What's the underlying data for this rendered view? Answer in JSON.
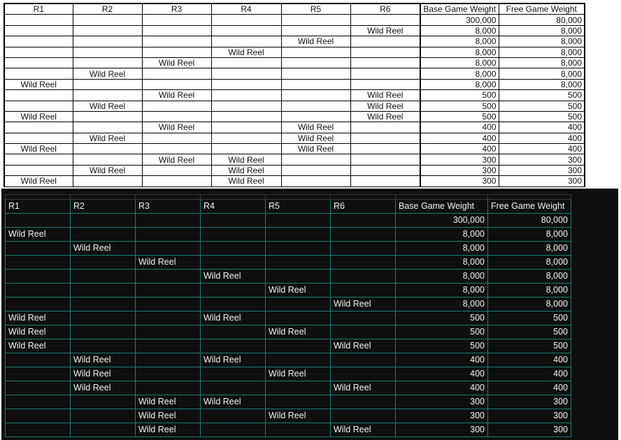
{
  "columns": [
    "R1",
    "R2",
    "R3",
    "R4",
    "R5",
    "R6",
    "Base Game Weight",
    "Free Game Weight"
  ],
  "wild_label": "Wild Reel",
  "colors": {
    "dark_bg": "#0f0f10",
    "dark_grid": "#1e7a74",
    "light_grid": "#000000"
  },
  "top_table": {
    "rows": [
      {
        "cells": [
          "",
          "",
          "",
          "",
          "",
          "",
          "300,000",
          "80,000"
        ]
      },
      {
        "cells": [
          "",
          "",
          "",
          "",
          "",
          "Wild Reel",
          "8,000",
          "8,000"
        ]
      },
      {
        "cells": [
          "",
          "",
          "",
          "",
          "Wild Reel",
          "",
          "8,000",
          "8,000"
        ]
      },
      {
        "cells": [
          "",
          "",
          "",
          "Wild Reel",
          "",
          "",
          "8,000",
          "8,000"
        ]
      },
      {
        "cells": [
          "",
          "",
          "Wild Reel",
          "",
          "",
          "",
          "8,000",
          "8,000"
        ]
      },
      {
        "cells": [
          "",
          "Wild Reel",
          "",
          "",
          "",
          "",
          "8,000",
          "8,000"
        ]
      },
      {
        "cells": [
          "Wild Reel",
          "",
          "",
          "",
          "",
          "",
          "8,000",
          "8,000"
        ]
      },
      {
        "cells": [
          "",
          "",
          "Wild Reel",
          "",
          "",
          "Wild Reel",
          "500",
          "500"
        ]
      },
      {
        "cells": [
          "",
          "Wild Reel",
          "",
          "",
          "",
          "Wild Reel",
          "500",
          "500"
        ]
      },
      {
        "cells": [
          "Wild Reel",
          "",
          "",
          "",
          "",
          "Wild Reel",
          "500",
          "500"
        ]
      },
      {
        "cells": [
          "",
          "",
          "Wild Reel",
          "",
          "Wild Reel",
          "",
          "400",
          "400"
        ]
      },
      {
        "cells": [
          "",
          "Wild Reel",
          "",
          "",
          "Wild Reel",
          "",
          "400",
          "400"
        ]
      },
      {
        "cells": [
          "Wild Reel",
          "",
          "",
          "",
          "Wild Reel",
          "",
          "400",
          "400"
        ]
      },
      {
        "cells": [
          "",
          "",
          "Wild Reel",
          "Wild Reel",
          "",
          "",
          "300",
          "300"
        ]
      },
      {
        "cells": [
          "",
          "Wild Reel",
          "",
          "Wild Reel",
          "",
          "",
          "300",
          "300"
        ]
      },
      {
        "cells": [
          "Wild Reel",
          "",
          "",
          "Wild Reel",
          "",
          "",
          "300",
          "300"
        ]
      }
    ]
  },
  "bottom_table": {
    "rows": [
      {
        "cells": [
          "",
          "",
          "",
          "",
          "",
          "",
          "300,000",
          "80,000"
        ]
      },
      {
        "cells": [
          "Wild Reel",
          "",
          "",
          "",
          "",
          "",
          "8,000",
          "8,000"
        ]
      },
      {
        "cells": [
          "",
          "Wild Reel",
          "",
          "",
          "",
          "",
          "8,000",
          "8,000"
        ]
      },
      {
        "cells": [
          "",
          "",
          "Wild Reel",
          "",
          "",
          "",
          "8,000",
          "8,000"
        ]
      },
      {
        "cells": [
          "",
          "",
          "",
          "Wild Reel",
          "",
          "",
          "8,000",
          "8,000"
        ]
      },
      {
        "cells": [
          "",
          "",
          "",
          "",
          "Wild Reel",
          "",
          "8,000",
          "8,000"
        ]
      },
      {
        "cells": [
          "",
          "",
          "",
          "",
          "",
          "Wild Reel",
          "8,000",
          "8,000"
        ]
      },
      {
        "cells": [
          "Wild Reel",
          "",
          "",
          "Wild Reel",
          "",
          "",
          "500",
          "500"
        ]
      },
      {
        "cells": [
          "Wild Reel",
          "",
          "",
          "",
          "Wild Reel",
          "",
          "500",
          "500"
        ]
      },
      {
        "cells": [
          "Wild Reel",
          "",
          "",
          "",
          "",
          "Wild Reel",
          "500",
          "500"
        ]
      },
      {
        "cells": [
          "",
          "Wild Reel",
          "",
          "Wild Reel",
          "",
          "",
          "400",
          "400"
        ]
      },
      {
        "cells": [
          "",
          "Wild Reel",
          "",
          "",
          "Wild Reel",
          "",
          "400",
          "400"
        ]
      },
      {
        "cells": [
          "",
          "Wild Reel",
          "",
          "",
          "",
          "Wild Reel",
          "400",
          "400"
        ]
      },
      {
        "cells": [
          "",
          "",
          "Wild Reel",
          "Wild Reel",
          "",
          "",
          "300",
          "300"
        ]
      },
      {
        "cells": [
          "",
          "",
          "Wild Reel",
          "",
          "Wild Reel",
          "",
          "300",
          "300"
        ]
      },
      {
        "cells": [
          "",
          "",
          "Wild Reel",
          "",
          "",
          "Wild Reel",
          "300",
          "300"
        ]
      }
    ]
  }
}
